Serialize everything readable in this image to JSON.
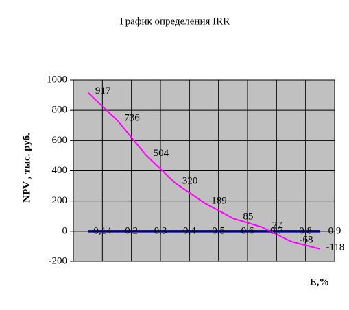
{
  "chart_data": {
    "type": "line",
    "title": "График определения IRR",
    "y_label": "NPV ,  тыс. руб.",
    "x_label": "E,%",
    "categories": [
      "0,14",
      "0,2",
      "0,3",
      "0,4",
      "0,5",
      "0,6",
      "0,7",
      "0,8",
      "0,9"
    ],
    "series": [
      {
        "color": "#ff00ff",
        "values": [
          917,
          736,
          504,
          320,
          189,
          85,
          27,
          -68,
          -118
        ],
        "data_labels": true
      },
      {
        "color": "#000080",
        "values": [
          0,
          0,
          0,
          0,
          0,
          0,
          0,
          0,
          0
        ],
        "data_labels": false
      }
    ],
    "ylim": [
      -200,
      1000
    ],
    "yticks": [
      -200,
      0,
      200,
      400,
      600,
      800,
      1000
    ],
    "grid": true,
    "plot_background": "#c0c0c0"
  }
}
